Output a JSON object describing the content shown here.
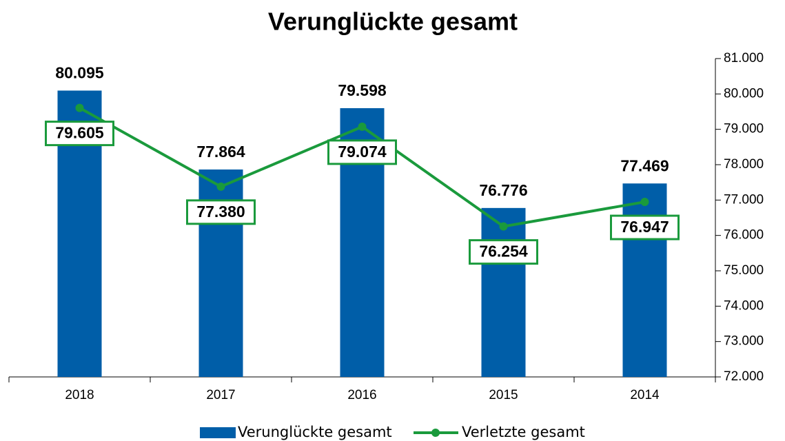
{
  "chart_data": {
    "type": "combo",
    "title": "Verunglückte gesamt",
    "categories": [
      "2018",
      "2017",
      "2016",
      "2015",
      "2014"
    ],
    "series": [
      {
        "name": "Verunglückte gesamt",
        "type": "bar",
        "color": "#005ea8",
        "values": [
          80095,
          77864,
          79598,
          76776,
          77469
        ],
        "value_labels": [
          "80.095",
          "77.864",
          "79.598",
          "76.776",
          "77.469"
        ]
      },
      {
        "name": "Verletzte gesamt",
        "type": "line",
        "color": "#1a9a3c",
        "values": [
          79605,
          77380,
          79074,
          76254,
          76947
        ],
        "value_labels": [
          "79.605",
          "77.380",
          "79.074",
          "76.254",
          "76.947"
        ]
      }
    ],
    "ylim": [
      72000,
      81000
    ],
    "yticks": [
      {
        "value": 72000,
        "label": "72.000"
      },
      {
        "value": 73000,
        "label": "73.000"
      },
      {
        "value": 74000,
        "label": "74.000"
      },
      {
        "value": 75000,
        "label": "75.000"
      },
      {
        "value": 76000,
        "label": "76.000"
      },
      {
        "value": 77000,
        "label": "77.000"
      },
      {
        "value": 78000,
        "label": "78.000"
      },
      {
        "value": 79000,
        "label": "79.000"
      },
      {
        "value": 80000,
        "label": "80.000"
      },
      {
        "value": 81000,
        "label": "81.000"
      }
    ],
    "legend": "bottom"
  }
}
